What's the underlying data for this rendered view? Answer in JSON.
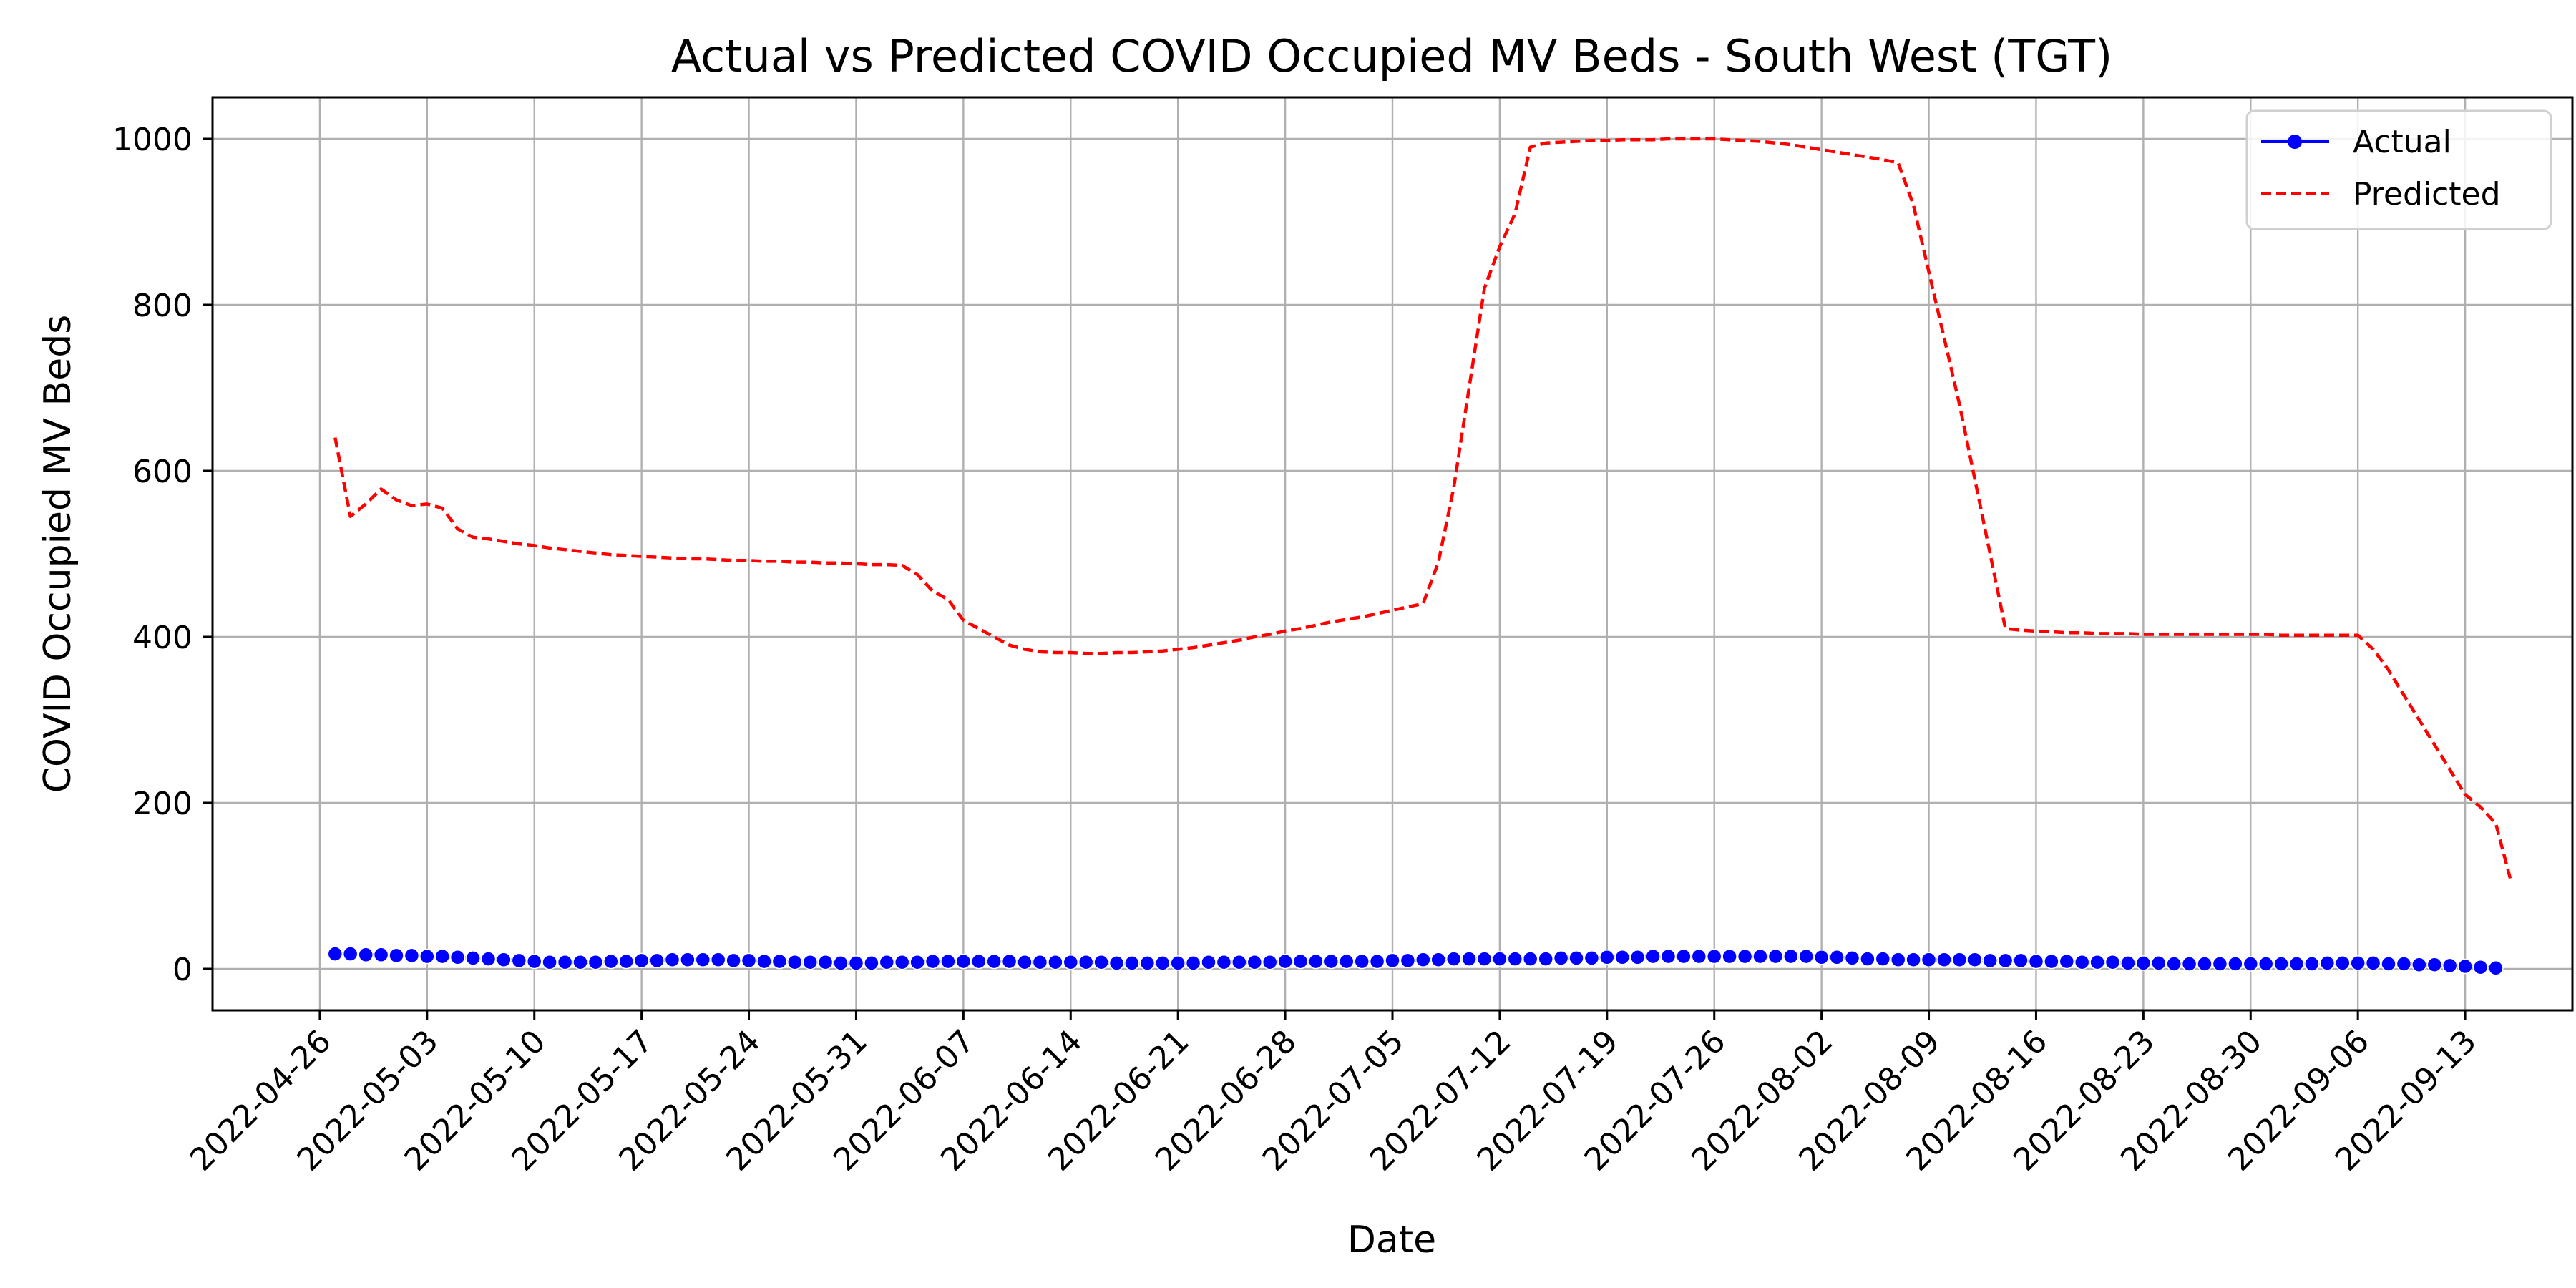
{
  "chart_data": {
    "type": "line",
    "title": "Actual vs Predicted COVID Occupied MV Beds - South West (TGT)",
    "xlabel": "Date",
    "ylabel": "COVID Occupied MV Beds",
    "x_start": "2022-04-27",
    "x_step_days": 1,
    "xlim_days_from_2022_04_26": [
      -7,
      147
    ],
    "ylim": [
      -50,
      1050
    ],
    "grid": true,
    "legend_position": "top-right",
    "x_ticks": [
      "2022-04-26",
      "2022-05-03",
      "2022-05-10",
      "2022-05-17",
      "2022-05-24",
      "2022-05-31",
      "2022-06-07",
      "2022-06-14",
      "2022-06-21",
      "2022-06-28",
      "2022-07-05",
      "2022-07-12",
      "2022-07-19",
      "2022-07-26",
      "2022-08-02",
      "2022-08-09",
      "2022-08-16",
      "2022-08-23",
      "2022-08-30",
      "2022-09-06",
      "2022-09-13"
    ],
    "y_ticks": [
      0,
      200,
      400,
      600,
      800,
      1000
    ],
    "series": [
      {
        "name": "Actual",
        "color": "#0000ff",
        "style": "solid-marker",
        "values": [
          18,
          18,
          17,
          17,
          16,
          16,
          15,
          15,
          14,
          13,
          12,
          11,
          10,
          9,
          8,
          8,
          8,
          8,
          9,
          9,
          10,
          10,
          11,
          11,
          11,
          11,
          10,
          10,
          9,
          9,
          8,
          8,
          8,
          7,
          7,
          7,
          8,
          8,
          8,
          9,
          9,
          9,
          9,
          9,
          9,
          8,
          8,
          8,
          8,
          8,
          8,
          7,
          7,
          7,
          7,
          7,
          7,
          8,
          8,
          8,
          8,
          8,
          9,
          9,
          9,
          9,
          9,
          9,
          9,
          10,
          10,
          11,
          11,
          12,
          12,
          12,
          12,
          12,
          12,
          12,
          13,
          13,
          13,
          14,
          14,
          14,
          15,
          15,
          15,
          15,
          15,
          15,
          15,
          15,
          15,
          15,
          15,
          14,
          14,
          13,
          12,
          12,
          11,
          11,
          11,
          11,
          11,
          11,
          10,
          10,
          10,
          9,
          9,
          9,
          8,
          8,
          8,
          7,
          7,
          7,
          6,
          6,
          6,
          6,
          6,
          6,
          6,
          6,
          6,
          6,
          7,
          7,
          7,
          7,
          6,
          6,
          5,
          5,
          4,
          3,
          2,
          1
        ]
      },
      {
        "name": "Predicted",
        "color": "#ff0000",
        "style": "dashed",
        "values": [
          640,
          545,
          560,
          578,
          565,
          558,
          560,
          555,
          530,
          520,
          518,
          515,
          512,
          510,
          507,
          505,
          503,
          501,
          499,
          498,
          497,
          496,
          495,
          494,
          494,
          493,
          492,
          492,
          491,
          491,
          490,
          490,
          489,
          489,
          488,
          487,
          487,
          486,
          475,
          455,
          445,
          420,
          410,
          400,
          390,
          385,
          382,
          381,
          381,
          380,
          380,
          381,
          381,
          382,
          383,
          385,
          387,
          390,
          393,
          396,
          400,
          403,
          407,
          410,
          414,
          418,
          421,
          424,
          428,
          432,
          436,
          440,
          490,
          580,
          700,
          820,
          870,
          910,
          990,
          995,
          996,
          997,
          998,
          998,
          999,
          999,
          999,
          1000,
          1000,
          1000,
          1000,
          999,
          998,
          997,
          995,
          993,
          990,
          987,
          984,
          981,
          978,
          975,
          971,
          920,
          840,
          760,
          680,
          590,
          500,
          410,
          408,
          407,
          406,
          405,
          405,
          404,
          404,
          404,
          403,
          403,
          403,
          403,
          403,
          403,
          403,
          403,
          403,
          402,
          402,
          402,
          402,
          402,
          402,
          385,
          360,
          330,
          300,
          270,
          240,
          210,
          195,
          175,
          105
        ]
      }
    ]
  }
}
